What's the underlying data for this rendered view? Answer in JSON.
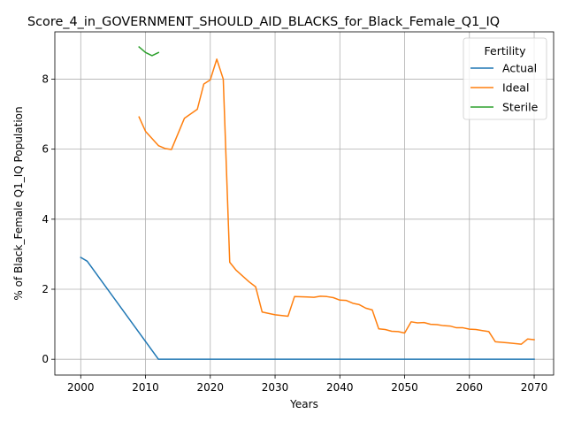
{
  "chart_data": {
    "type": "line",
    "title": "Score_4_in_GOVERNMENT_SHOULD_AID_BLACKS_for_Black_Female_Q1_IQ",
    "xlabel": "Years",
    "ylabel": "% of Black_Female Q1_IQ Population",
    "xlim": [
      1996,
      2073
    ],
    "ylim": [
      -0.45,
      9.35
    ],
    "xticks": [
      2000,
      2010,
      2020,
      2030,
      2040,
      2050,
      2060,
      2070
    ],
    "yticks": [
      0,
      2,
      4,
      6,
      8
    ],
    "grid": true,
    "legend": {
      "title": "Fertility",
      "placement": "top-right"
    },
    "series": [
      {
        "name": "Actual",
        "color": "#1f77b4",
        "x": [
          2000,
          2001,
          2012,
          2070
        ],
        "y": [
          2.91,
          2.8,
          0.0,
          0.0
        ]
      },
      {
        "name": "Ideal",
        "color": "#ff7f0e",
        "x": [
          2009,
          2010,
          2012,
          2013,
          2014,
          2016,
          2018,
          2019,
          2020,
          2021,
          2022,
          2023,
          2024,
          2026,
          2027,
          2028,
          2030,
          2032,
          2033,
          2035,
          2036,
          2037,
          2038,
          2039,
          2040,
          2041,
          2042,
          2043,
          2044,
          2045,
          2046,
          2047,
          2048,
          2049,
          2050,
          2051,
          2052,
          2053,
          2054,
          2055,
          2056,
          2057,
          2058,
          2059,
          2060,
          2061,
          2062,
          2063,
          2064,
          2066,
          2068,
          2069,
          2070
        ],
        "y": [
          6.92,
          6.51,
          6.1,
          6.02,
          5.99,
          6.88,
          7.14,
          7.86,
          7.98,
          8.57,
          8.0,
          2.77,
          2.54,
          2.21,
          2.07,
          1.35,
          1.27,
          1.23,
          1.79,
          1.78,
          1.77,
          1.8,
          1.79,
          1.76,
          1.69,
          1.68,
          1.6,
          1.56,
          1.46,
          1.41,
          0.87,
          0.85,
          0.8,
          0.79,
          0.75,
          1.07,
          1.04,
          1.05,
          1.0,
          0.99,
          0.96,
          0.95,
          0.9,
          0.9,
          0.86,
          0.85,
          0.82,
          0.79,
          0.5,
          0.47,
          0.43,
          0.58,
          0.56
        ]
      },
      {
        "name": "Sterile",
        "color": "#2ca02c",
        "x": [
          2009,
          2010,
          2011,
          2012
        ],
        "y": [
          8.92,
          8.76,
          8.67,
          8.76
        ]
      }
    ]
  }
}
